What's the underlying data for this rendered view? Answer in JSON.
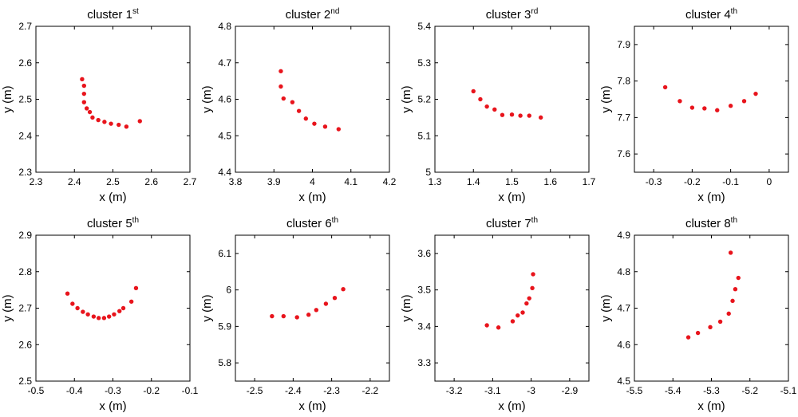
{
  "colors": {
    "point": "#e8141c",
    "axes": "#000000",
    "background": "#ffffff"
  },
  "chart_data": [
    {
      "type": "scatter",
      "title_prefix": "cluster 1",
      "title_sup": "st",
      "xlabel": "x (m)",
      "ylabel": "y (m)",
      "xlim": [
        2.3,
        2.7
      ],
      "ylim": [
        2.3,
        2.7
      ],
      "xticks": [
        2.3,
        2.4,
        2.5,
        2.6,
        2.7
      ],
      "xtick_labels": [
        "2.3",
        "2.4",
        "2.5",
        "2.6",
        "2.7"
      ],
      "yticks": [
        2.3,
        2.4,
        2.5,
        2.6,
        2.7
      ],
      "ytick_labels": [
        "2.3",
        "2.4",
        "2.5",
        "2.6",
        "2.7"
      ],
      "points": [
        [
          2.42,
          2.555
        ],
        [
          2.425,
          2.537
        ],
        [
          2.425,
          2.515
        ],
        [
          2.425,
          2.492
        ],
        [
          2.432,
          2.475
        ],
        [
          2.44,
          2.465
        ],
        [
          2.447,
          2.45
        ],
        [
          2.462,
          2.443
        ],
        [
          2.478,
          2.438
        ],
        [
          2.495,
          2.433
        ],
        [
          2.515,
          2.43
        ],
        [
          2.535,
          2.425
        ],
        [
          2.57,
          2.44
        ]
      ]
    },
    {
      "type": "scatter",
      "title_prefix": "cluster 2",
      "title_sup": "nd",
      "xlabel": "x (m)",
      "ylabel": "y (m)",
      "xlim": [
        3.8,
        4.2
      ],
      "ylim": [
        4.4,
        4.8
      ],
      "xticks": [
        3.8,
        3.9,
        4.0,
        4.1,
        4.2
      ],
      "xtick_labels": [
        "3.8",
        "3.9",
        "4",
        "4.1",
        "4.2"
      ],
      "yticks": [
        4.4,
        4.5,
        4.6,
        4.7,
        4.8
      ],
      "ytick_labels": [
        "4.4",
        "4.5",
        "4.6",
        "4.7",
        "4.8"
      ],
      "points": [
        [
          3.918,
          4.677
        ],
        [
          3.918,
          4.635
        ],
        [
          3.925,
          4.602
        ],
        [
          3.948,
          4.592
        ],
        [
          3.965,
          4.568
        ],
        [
          3.983,
          4.547
        ],
        [
          4.005,
          4.533
        ],
        [
          4.033,
          4.525
        ],
        [
          4.068,
          4.518
        ]
      ]
    },
    {
      "type": "scatter",
      "title_prefix": "cluster 3",
      "title_sup": "rd",
      "xlabel": "x (m)",
      "ylabel": "y (m)",
      "xlim": [
        1.3,
        1.7
      ],
      "ylim": [
        5.0,
        5.4
      ],
      "xticks": [
        1.3,
        1.4,
        1.5,
        1.6,
        1.7
      ],
      "xtick_labels": [
        "1.3",
        "1.4",
        "1.5",
        "1.6",
        "1.7"
      ],
      "yticks": [
        5.0,
        5.1,
        5.2,
        5.3,
        5.4
      ],
      "ytick_labels": [
        "5",
        "5.1",
        "5.2",
        "5.3",
        "5.4"
      ],
      "points": [
        [
          1.4,
          5.222
        ],
        [
          1.418,
          5.2
        ],
        [
          1.435,
          5.18
        ],
        [
          1.455,
          5.172
        ],
        [
          1.475,
          5.157
        ],
        [
          1.5,
          5.158
        ],
        [
          1.522,
          5.155
        ],
        [
          1.545,
          5.155
        ],
        [
          1.575,
          5.15
        ]
      ]
    },
    {
      "type": "scatter",
      "title_prefix": "cluster 4",
      "title_sup": "th",
      "xlabel": "x (m)",
      "ylabel": "y (m)",
      "xlim": [
        -0.35,
        0.05
      ],
      "ylim": [
        7.55,
        7.95
      ],
      "xticks": [
        -0.3,
        -0.2,
        -0.1,
        0
      ],
      "xtick_labels": [
        "-0.3",
        "-0.2",
        "-0.1",
        "0"
      ],
      "yticks": [
        7.6,
        7.7,
        7.8,
        7.9
      ],
      "ytick_labels": [
        "7.6",
        "7.7",
        "7.8",
        "7.9"
      ],
      "points": [
        [
          -0.27,
          7.783
        ],
        [
          -0.232,
          7.745
        ],
        [
          -0.2,
          7.727
        ],
        [
          -0.168,
          7.725
        ],
        [
          -0.135,
          7.72
        ],
        [
          -0.1,
          7.732
        ],
        [
          -0.065,
          7.745
        ],
        [
          -0.035,
          7.765
        ]
      ]
    },
    {
      "type": "scatter",
      "title_prefix": "cluster 5",
      "title_sup": "th",
      "xlabel": "x (m)",
      "ylabel": "y (m)",
      "xlim": [
        -0.5,
        -0.1
      ],
      "ylim": [
        2.5,
        2.9
      ],
      "xticks": [
        -0.5,
        -0.4,
        -0.3,
        -0.2,
        -0.1
      ],
      "xtick_labels": [
        "-0.5",
        "-0.4",
        "-0.3",
        "-0.2",
        "-0.1"
      ],
      "yticks": [
        2.5,
        2.6,
        2.7,
        2.8,
        2.9
      ],
      "ytick_labels": [
        "2.5",
        "2.6",
        "2.7",
        "2.8",
        "2.9"
      ],
      "points": [
        [
          -0.418,
          2.74
        ],
        [
          -0.405,
          2.712
        ],
        [
          -0.392,
          2.7
        ],
        [
          -0.378,
          2.69
        ],
        [
          -0.365,
          2.683
        ],
        [
          -0.35,
          2.677
        ],
        [
          -0.337,
          2.673
        ],
        [
          -0.323,
          2.673
        ],
        [
          -0.31,
          2.677
        ],
        [
          -0.297,
          2.683
        ],
        [
          -0.283,
          2.692
        ],
        [
          -0.273,
          2.7
        ],
        [
          -0.252,
          2.718
        ],
        [
          -0.24,
          2.755
        ]
      ]
    },
    {
      "type": "scatter",
      "title_prefix": "cluster 6",
      "title_sup": "th",
      "xlabel": "x (m)",
      "ylabel": "y (m)",
      "xlim": [
        -2.55,
        -2.15
      ],
      "ylim": [
        5.75,
        6.15
      ],
      "xticks": [
        -2.5,
        -2.4,
        -2.3,
        -2.2
      ],
      "xtick_labels": [
        "-2.5",
        "-2.4",
        "-2.3",
        "-2.2"
      ],
      "yticks": [
        5.8,
        5.9,
        6.0,
        6.1
      ],
      "ytick_labels": [
        "5.8",
        "5.9",
        "6",
        "6.1"
      ],
      "points": [
        [
          -2.455,
          5.928
        ],
        [
          -2.425,
          5.928
        ],
        [
          -2.39,
          5.925
        ],
        [
          -2.36,
          5.932
        ],
        [
          -2.34,
          5.945
        ],
        [
          -2.315,
          5.962
        ],
        [
          -2.292,
          5.978
        ],
        [
          -2.27,
          6.002
        ]
      ]
    },
    {
      "type": "scatter",
      "title_prefix": "cluster 7",
      "title_sup": "th",
      "xlabel": "x (m)",
      "ylabel": "y (m)",
      "xlim": [
        -3.25,
        -2.85
      ],
      "ylim": [
        3.25,
        3.65
      ],
      "xticks": [
        -3.2,
        -3.1,
        -3.0,
        -2.9
      ],
      "xtick_labels": [
        "-3.2",
        "-3.1",
        "-3",
        "-2.9"
      ],
      "yticks": [
        3.3,
        3.4,
        3.5,
        3.6
      ],
      "ytick_labels": [
        "3.3",
        "3.4",
        "3.5",
        "3.6"
      ],
      "points": [
        [
          -3.115,
          3.403
        ],
        [
          -3.085,
          3.397
        ],
        [
          -3.048,
          3.414
        ],
        [
          -3.035,
          3.43
        ],
        [
          -3.022,
          3.438
        ],
        [
          -3.012,
          3.463
        ],
        [
          -3.005,
          3.477
        ],
        [
          -2.997,
          3.505
        ],
        [
          -2.995,
          3.543
        ]
      ]
    },
    {
      "type": "scatter",
      "title_prefix": "cluster 8",
      "title_sup": "th",
      "xlabel": "x (m)",
      "ylabel": "y (m)",
      "xlim": [
        -5.5,
        -5.1
      ],
      "ylim": [
        4.5,
        4.9
      ],
      "xticks": [
        -5.5,
        -5.4,
        -5.3,
        -5.2,
        -5.1
      ],
      "xtick_labels": [
        "-5.5",
        "-5.4",
        "-5.3",
        "-5.2",
        "-5.1"
      ],
      "yticks": [
        4.5,
        4.6,
        4.7,
        4.8,
        4.9
      ],
      "ytick_labels": [
        "4.5",
        "4.6",
        "4.7",
        "4.8",
        "4.9"
      ],
      "points": [
        [
          -5.36,
          4.62
        ],
        [
          -5.335,
          4.632
        ],
        [
          -5.303,
          4.648
        ],
        [
          -5.277,
          4.663
        ],
        [
          -5.255,
          4.685
        ],
        [
          -5.245,
          4.72
        ],
        [
          -5.238,
          4.752
        ],
        [
          -5.23,
          4.783
        ],
        [
          -5.25,
          4.852
        ]
      ]
    }
  ]
}
